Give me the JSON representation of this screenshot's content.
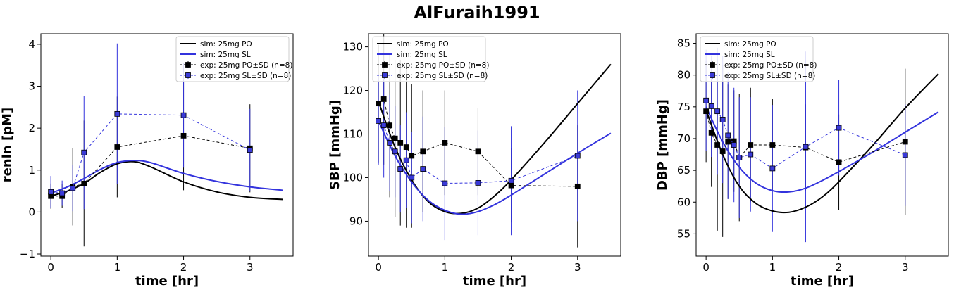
{
  "figure": {
    "title": "AlFuraih1991"
  },
  "colors": {
    "po": "#000000",
    "sl": "#3333dd",
    "marker_sl_fill": "#3a3ad8"
  },
  "chart_data": [
    {
      "type": "line",
      "xlabel": "time [hr]",
      "ylabel": "renin [pM]",
      "xlim": [
        -0.15,
        3.65
      ],
      "ylim": [
        -1.05,
        4.25
      ],
      "xticks": [
        0,
        1,
        2,
        3
      ],
      "yticks": [
        -1,
        0,
        1,
        2,
        3,
        4
      ],
      "legend_position": "top-right",
      "legend": [
        "sim: 25mg PO",
        "sim: 25mg SL",
        "exp: 25mg PO±SD (n=8)",
        "exp: 25mg SL±SD (n=8)"
      ],
      "series": [
        {
          "name": "sim: 25mg PO",
          "kind": "sim",
          "color": "#000000",
          "x": [
            0,
            0.25,
            0.5,
            0.75,
            1.0,
            1.25,
            1.5,
            2.0,
            2.5,
            3.0,
            3.5
          ],
          "y": [
            0.38,
            0.5,
            0.68,
            0.95,
            1.15,
            1.2,
            1.08,
            0.72,
            0.48,
            0.35,
            0.3
          ]
        },
        {
          "name": "sim: 25mg SL",
          "kind": "sim",
          "color": "#3333dd",
          "x": [
            0,
            0.25,
            0.5,
            0.75,
            1.0,
            1.25,
            1.5,
            2.0,
            2.5,
            3.0,
            3.5
          ],
          "y": [
            0.45,
            0.6,
            0.8,
            1.02,
            1.18,
            1.23,
            1.18,
            0.92,
            0.73,
            0.6,
            0.52
          ]
        },
        {
          "name": "exp: 25mg PO±SD (n=8)",
          "kind": "exp",
          "color": "#000000",
          "x": [
            0,
            0.17,
            0.33,
            0.5,
            1.0,
            2.0,
            3.0
          ],
          "y": [
            0.38,
            0.38,
            0.6,
            0.68,
            1.55,
            1.82,
            1.52
          ],
          "err": [
            0.3,
            0.28,
            0.92,
            1.5,
            1.2,
            1.3,
            1.05
          ]
        },
        {
          "name": "exp: 25mg SL±SD (n=8)",
          "kind": "exp",
          "color": "#3333dd",
          "x": [
            0,
            0.17,
            0.33,
            0.5,
            1.0,
            2.0,
            3.0
          ],
          "y": [
            0.48,
            0.45,
            0.57,
            1.42,
            2.34,
            2.31,
            1.48
          ],
          "err": [
            0.38,
            0.3,
            0.55,
            1.35,
            1.68,
            1.25,
            0.98
          ]
        }
      ]
    },
    {
      "type": "line",
      "xlabel": "time [hr]",
      "ylabel": "SBP [mmHg]",
      "xlim": [
        -0.15,
        3.65
      ],
      "ylim": [
        82.0,
        133.0
      ],
      "xticks": [
        0,
        1,
        2,
        3
      ],
      "yticks": [
        90,
        100,
        110,
        120,
        130
      ],
      "legend_position": "top-left",
      "legend": [
        "sim: 25mg PO",
        "sim: 25mg SL",
        "exp: 25mg PO±SD (n=8)",
        "exp: 25mg SL±SD (n=8)"
      ],
      "series": [
        {
          "name": "sim: 25mg PO",
          "kind": "sim",
          "color": "#000000",
          "x": [
            0,
            0.25,
            0.5,
            0.75,
            1.0,
            1.25,
            1.5,
            1.75,
            2.0,
            2.5,
            3.0,
            3.5
          ],
          "y": [
            117.5,
            107.0,
            99.5,
            94.5,
            92.2,
            91.8,
            93.0,
            95.8,
            99.5,
            108.0,
            117.0,
            126.0
          ]
        },
        {
          "name": "sim: 25mg SL",
          "kind": "sim",
          "color": "#3333dd",
          "x": [
            0,
            0.25,
            0.5,
            0.75,
            1.0,
            1.25,
            1.5,
            1.75,
            2.0,
            2.5,
            3.0,
            3.5
          ],
          "y": [
            113.0,
            105.0,
            99.0,
            94.8,
            92.5,
            91.6,
            92.2,
            93.8,
            96.0,
            100.8,
            105.6,
            110.2
          ]
        },
        {
          "name": "exp: 25mg PO±SD (n=8)",
          "kind": "exp",
          "color": "#000000",
          "x": [
            0,
            0.08,
            0.17,
            0.25,
            0.33,
            0.42,
            0.5,
            0.67,
            1.0,
            1.5,
            2.0,
            3.0
          ],
          "y": [
            117.0,
            118.0,
            112.0,
            109.0,
            108.0,
            107.0,
            105.0,
            106.0,
            108.0,
            106.0,
            98.2,
            98.0
          ],
          "err": [
            13.5,
            15.0,
            16.5,
            18.0,
            19.0,
            18.5,
            16.5,
            14.0,
            12.0,
            10.0,
            8.5,
            14.0
          ]
        },
        {
          "name": "exp: 25mg SL±SD (n=8)",
          "kind": "exp",
          "color": "#3333dd",
          "x": [
            0,
            0.08,
            0.17,
            0.25,
            0.33,
            0.42,
            0.5,
            0.67,
            1.0,
            1.5,
            2.0,
            3.0
          ],
          "y": [
            113.0,
            112.0,
            108.0,
            106.0,
            102.0,
            104.0,
            100.0,
            102.0,
            98.7,
            98.8,
            99.3,
            105.0
          ],
          "err": [
            10.0,
            12.0,
            11.0,
            10.5,
            10.0,
            11.0,
            10.5,
            12.0,
            13.0,
            12.0,
            12.5,
            15.0
          ]
        }
      ]
    },
    {
      "type": "line",
      "xlabel": "time [hr]",
      "ylabel": "DBP [mmHg]",
      "xlim": [
        -0.15,
        3.65
      ],
      "ylim": [
        51.5,
        86.5
      ],
      "xticks": [
        0,
        1,
        2,
        3
      ],
      "yticks": [
        55,
        60,
        65,
        70,
        75,
        80,
        85
      ],
      "legend_position": "top-left",
      "legend": [
        "sim: 25mg PO",
        "sim: 25mg SL",
        "exp: 25mg PO±SD (n=8)",
        "exp: 25mg SL±SD (n=8)"
      ],
      "series": [
        {
          "name": "sim: 25mg PO",
          "kind": "sim",
          "color": "#000000",
          "x": [
            0,
            0.25,
            0.5,
            0.75,
            1.0,
            1.25,
            1.5,
            1.75,
            2.0,
            2.5,
            3.0,
            3.5
          ],
          "y": [
            74.5,
            67.5,
            62.5,
            59.8,
            58.6,
            58.4,
            59.2,
            60.8,
            63.2,
            68.8,
            74.8,
            80.2
          ]
        },
        {
          "name": "sim: 25mg SL",
          "kind": "sim",
          "color": "#3333dd",
          "x": [
            0,
            0.25,
            0.5,
            0.75,
            1.0,
            1.25,
            1.5,
            1.75,
            2.0,
            2.5,
            3.0,
            3.5
          ],
          "y": [
            75.0,
            69.5,
            65.5,
            63.0,
            61.8,
            61.6,
            62.2,
            63.4,
            64.8,
            67.8,
            71.0,
            74.2
          ]
        },
        {
          "name": "exp: 25mg PO±SD (n=8)",
          "kind": "exp",
          "color": "#000000",
          "x": [
            0,
            0.08,
            0.17,
            0.25,
            0.33,
            0.42,
            0.5,
            0.67,
            1.0,
            1.5,
            2.0,
            3.0
          ],
          "y": [
            74.3,
            70.9,
            69.0,
            68.0,
            69.5,
            69.6,
            67.0,
            69.0,
            69.0,
            68.6,
            66.3,
            69.5
          ],
          "err": [
            8.0,
            8.5,
            13.5,
            13.5,
            9.0,
            8.0,
            10.0,
            9.0,
            7.2,
            6.8,
            7.5,
            11.5
          ]
        },
        {
          "name": "exp: 25mg SL±SD (n=8)",
          "kind": "exp",
          "color": "#3333dd",
          "x": [
            0,
            0.08,
            0.17,
            0.25,
            0.33,
            0.42,
            0.5,
            0.67,
            1.0,
            1.5,
            2.0,
            3.0
          ],
          "y": [
            76.0,
            75.1,
            74.3,
            73.0,
            70.5,
            69.0,
            67.0,
            67.5,
            65.3,
            68.7,
            71.7,
            67.4
          ],
          "err": [
            8.0,
            8.0,
            10.0,
            10.0,
            10.0,
            9.0,
            9.5,
            9.0,
            10.0,
            15.0,
            7.5,
            8.0
          ]
        }
      ]
    }
  ]
}
